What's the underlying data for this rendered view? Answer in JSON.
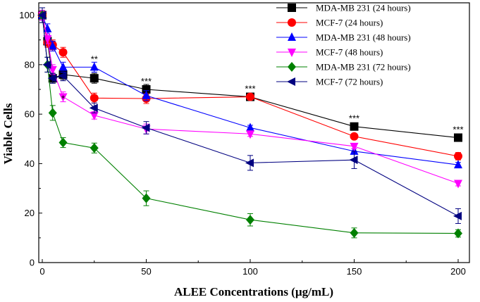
{
  "chart_data": {
    "type": "line",
    "title": "",
    "xlabel": "ALEE Concentrations (µg/mL)",
    "ylabel": "Viable Cells",
    "xlim": [
      0,
      210
    ],
    "ylim": [
      0,
      105
    ],
    "xticks": [
      0,
      50,
      100,
      150,
      200
    ],
    "yticks": [
      0,
      20,
      40,
      60,
      80,
      100
    ],
    "x": [
      0,
      2.5,
      5,
      10,
      25,
      50,
      100,
      150,
      200
    ],
    "series": [
      {
        "name": "MDA-MB 231 (24 hours)",
        "color": "#000000",
        "marker": "square",
        "values": [
          100,
          89.5,
          74.5,
          76,
          74.5,
          70,
          67,
          55,
          50.5
        ],
        "errors": [
          2,
          2,
          2,
          2,
          2,
          2,
          1,
          1,
          1
        ]
      },
      {
        "name": "MCF-7 (24 hours)",
        "color": "#ff0000",
        "marker": "circle",
        "values": [
          100,
          89,
          88,
          85,
          66.5,
          66.3,
          67,
          51,
          43
        ],
        "errors": [
          2,
          2,
          2,
          2,
          2,
          2,
          1,
          1,
          1.5
        ]
      },
      {
        "name": "MDA-MB 231 (48 hours)",
        "color": "#0000ff",
        "marker": "triangle-up",
        "values": [
          100,
          94.5,
          87.5,
          79,
          79,
          67.5,
          54.5,
          45,
          39.5
        ],
        "errors": [
          2,
          2,
          2,
          2,
          2,
          2,
          1,
          1,
          1
        ]
      },
      {
        "name": "MCF-7 (48 hours)",
        "color": "#ff00ff",
        "marker": "triangle-down",
        "values": [
          100,
          90.5,
          78,
          67,
          59.5,
          54,
          52,
          47,
          32
        ],
        "errors": [
          2,
          2,
          2,
          2,
          1.5,
          2,
          1,
          1,
          1
        ]
      },
      {
        "name": "MDA-MB 231 (72 hours)",
        "color": "#008000",
        "marker": "diamond",
        "values": [
          100,
          80,
          60.5,
          48.5,
          46.3,
          26,
          17.3,
          12,
          11.8
        ],
        "errors": [
          3,
          3,
          3,
          2,
          2,
          3,
          2.5,
          2,
          1.5
        ]
      },
      {
        "name": "MCF-7 (72 hours)",
        "color": "#000080",
        "marker": "triangle-left",
        "values": [
          100,
          80,
          74.5,
          75.5,
          62.5,
          54.5,
          40.3,
          41.5,
          18.8
        ],
        "errors": [
          3,
          3,
          2,
          2,
          2,
          2.5,
          3,
          3.5,
          3
        ]
      }
    ],
    "annotations": [
      {
        "text": "*",
        "x": 10,
        "y": 65
      },
      {
        "text": "**",
        "x": 25,
        "y": 81
      },
      {
        "text": "***",
        "x": 50,
        "y": 72
      },
      {
        "text": "***",
        "x": 100,
        "y": 69
      },
      {
        "text": "***",
        "x": 150,
        "y": 57
      },
      {
        "text": "***",
        "x": 200,
        "y": 52.5
      }
    ],
    "legend_position": "top-right",
    "grid": false
  }
}
